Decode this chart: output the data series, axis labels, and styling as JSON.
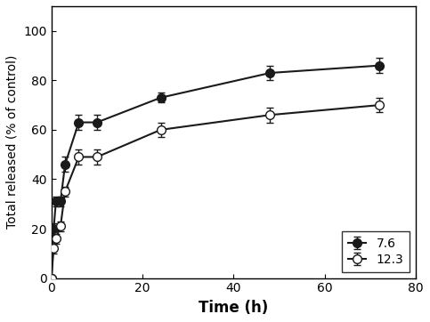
{
  "series1_label": "7.6",
  "series2_label": "12.3",
  "series1_x": [
    0,
    0.5,
    1,
    2,
    3,
    6,
    10,
    24,
    48,
    72
  ],
  "series1_y": [
    0,
    20,
    31,
    31,
    46,
    63,
    63,
    73,
    83,
    86
  ],
  "series1_yerr": [
    0,
    2,
    2,
    2,
    3,
    3,
    3,
    2,
    3,
    3
  ],
  "series2_x": [
    0,
    0.5,
    1,
    2,
    3,
    6,
    10,
    24,
    48,
    72
  ],
  "series2_y": [
    0,
    12,
    16,
    21,
    35,
    49,
    49,
    60,
    66,
    70
  ],
  "series2_yerr": [
    0,
    2,
    2,
    2,
    2,
    3,
    3,
    3,
    3,
    3
  ],
  "xlabel": "Time (h)",
  "ylabel": "Total released (% of control)",
  "xlim": [
    0,
    80
  ],
  "ylim": [
    0,
    110
  ],
  "xticks": [
    0,
    20,
    40,
    60,
    80
  ],
  "yticks": [
    0,
    20,
    40,
    60,
    80,
    100
  ],
  "legend_loc": "lower right",
  "line_color": "#1a1a1a",
  "bg_color": "#ffffff",
  "marker_size": 7,
  "linewidth": 1.5,
  "capsize": 3,
  "elinewidth": 1.0,
  "xlabel_fontsize": 12,
  "ylabel_fontsize": 10,
  "tick_fontsize": 10,
  "legend_fontsize": 10
}
